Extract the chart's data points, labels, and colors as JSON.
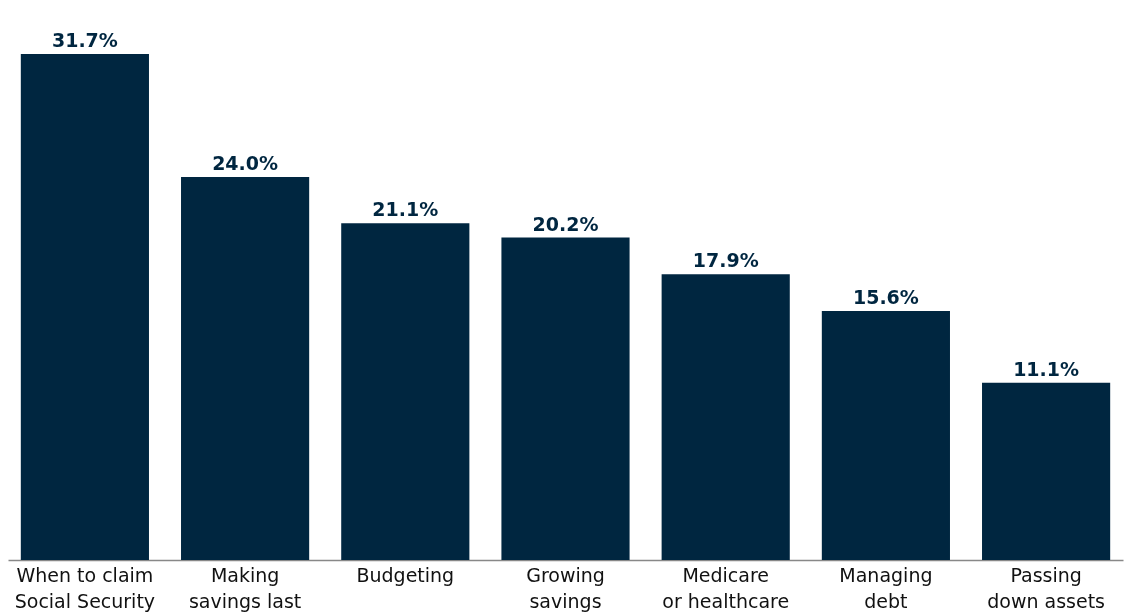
{
  "chart_data": {
    "type": "bar",
    "categories": [
      "When to claim\nSocial Security",
      "Making\nsavings last",
      "Budgeting",
      "Growing\nsavings",
      "Medicare\nor healthcare",
      "Managing\ndebt",
      "Passing\ndown assets"
    ],
    "values": [
      31.7,
      24.0,
      21.1,
      20.2,
      17.9,
      15.6,
      11.1
    ],
    "value_labels": [
      "31.7%",
      "24.0%",
      "21.1%",
      "20.2%",
      "17.9%",
      "15.6%",
      "11.1%"
    ],
    "color": "#002640",
    "grid": false,
    "tick_labels": "x"
  }
}
